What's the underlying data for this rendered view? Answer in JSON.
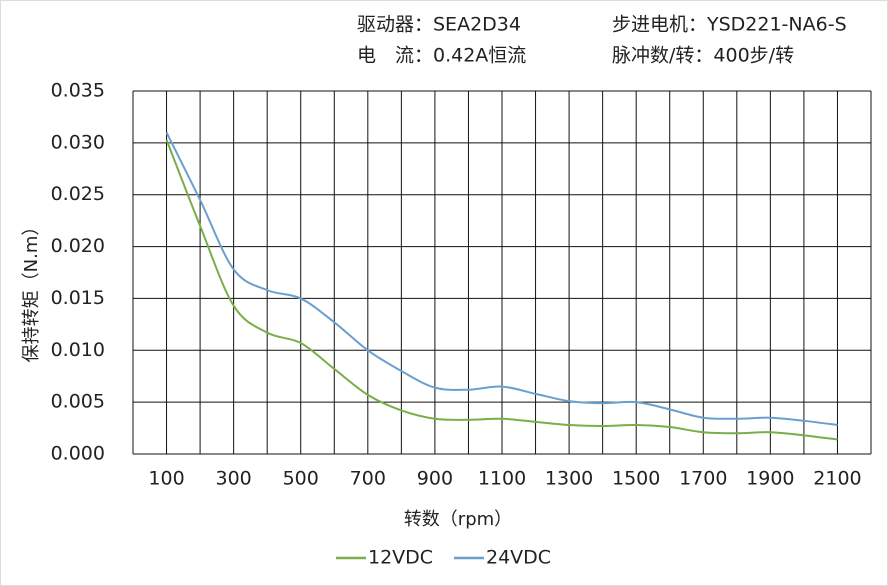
{
  "chart_data": {
    "type": "line",
    "header": [
      "驱动器：SEA2D34",
      "步进电机：YSD221-NA6-S",
      "电　流：0.42A恒流",
      "脉冲数/转：400步/转"
    ],
    "y_label": "保持转矩（N.m）",
    "x_label": "转数（rpm）",
    "x": [
      100,
      200,
      300,
      400,
      500,
      600,
      700,
      800,
      900,
      1000,
      1100,
      1200,
      1300,
      1400,
      1500,
      1600,
      1700,
      1800,
      1900,
      2000,
      2100
    ],
    "series": [
      {
        "name": "12VDC",
        "color": "#79ae48",
        "values": [
          0.0303,
          0.022,
          0.0143,
          0.0117,
          0.0107,
          0.0082,
          0.0057,
          0.0042,
          0.0034,
          0.0033,
          0.0034,
          0.0031,
          0.0028,
          0.0027,
          0.0028,
          0.0026,
          0.0021,
          0.002,
          0.0021,
          0.0018,
          0.0014
        ]
      },
      {
        "name": "24VDC",
        "color": "#6a9fd0",
        "values": [
          0.031,
          0.0245,
          0.0178,
          0.0158,
          0.015,
          0.0127,
          0.01,
          0.008,
          0.0064,
          0.0062,
          0.0065,
          0.0058,
          0.0051,
          0.0049,
          0.005,
          0.0043,
          0.0035,
          0.0034,
          0.0035,
          0.0032,
          0.0028
        ]
      }
    ],
    "xlim": [
      0,
      2200
    ],
    "xticks": [
      100,
      300,
      500,
      700,
      900,
      1100,
      1300,
      1500,
      1700,
      1900,
      2100
    ],
    "xgrid": [
      0,
      100,
      200,
      300,
      400,
      500,
      600,
      700,
      800,
      900,
      1000,
      1100,
      1200,
      1300,
      1400,
      1500,
      1600,
      1700,
      1800,
      1900,
      2000,
      2100,
      2200
    ],
    "ylim": [
      0,
      0.035
    ],
    "yticks": [
      {
        "value": 0,
        "label": "0.000"
      },
      {
        "value": 0.005,
        "label": "0.005"
      },
      {
        "value": 0.01,
        "label": "0.010"
      },
      {
        "value": 0.015,
        "label": "0.015"
      },
      {
        "value": 0.02,
        "label": "0.020"
      },
      {
        "value": 0.025,
        "label": "0.025"
      },
      {
        "value": 0.03,
        "label": "0.030"
      },
      {
        "value": 0.035,
        "label": "0.035"
      }
    ],
    "grid": true,
    "legend": "bottom"
  }
}
